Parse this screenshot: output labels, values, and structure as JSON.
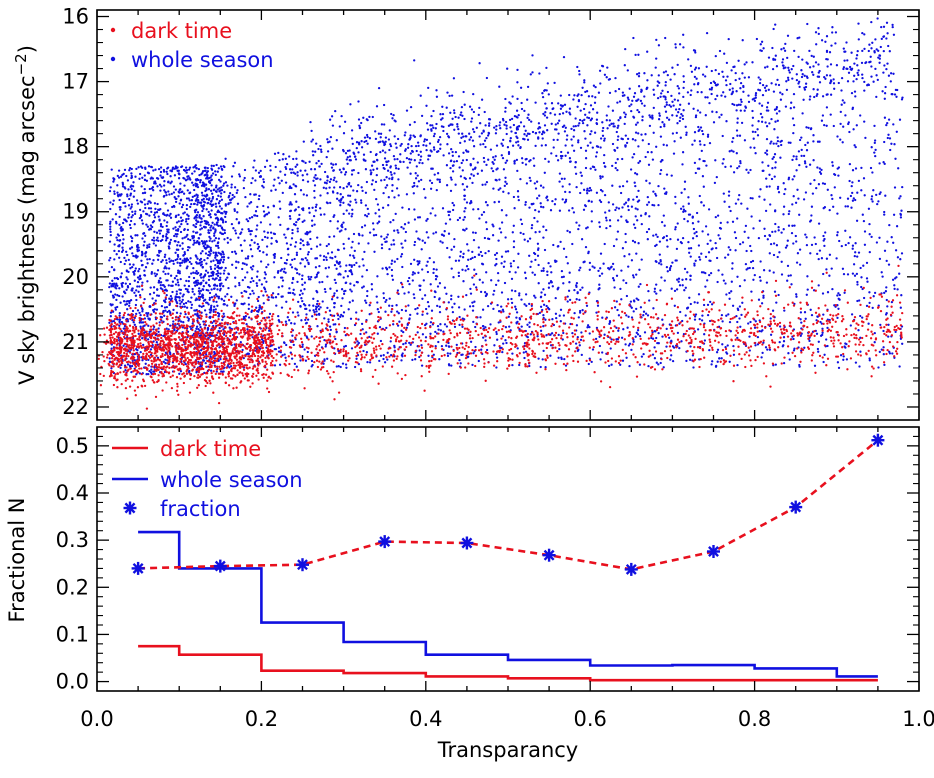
{
  "chart_data": [
    {
      "type": "scatter",
      "ylabel_main": "V sky brightness (mag arcsec",
      "ylabel_sup": "−2",
      "ylabel_close": ")",
      "ylim": [
        22.2,
        15.9
      ],
      "xlim": [
        0.0,
        1.0
      ],
      "y_ticks": [
        "16",
        "17",
        "18",
        "19",
        "20",
        "21",
        "22"
      ],
      "y_tick_values": [
        16,
        17,
        18,
        19,
        20,
        21,
        22
      ],
      "legend": [
        {
          "name": "dark time",
          "color": "#e8101e",
          "marker": "dot"
        },
        {
          "name": "whole season",
          "color": "#1010e0",
          "marker": "dot"
        }
      ],
      "legend_position": "top-left",
      "series": [
        {
          "name": "dark time",
          "color": "#e8101e",
          "approx_points": 2600,
          "transparency_range": [
            0.0,
            0.98
          ],
          "magnitude_range": [
            20.4,
            21.8
          ],
          "magnitude_median": 21.0
        },
        {
          "name": "whole season",
          "color": "#1010e0",
          "approx_points": 5200,
          "transparency_range": [
            0.0,
            1.0
          ],
          "magnitude_range": [
            16.1,
            21.6
          ],
          "note_ridge": "upper envelope rises from ~18 at 0.2 to ~16.5 at 0.95"
        }
      ]
    },
    {
      "type": "line",
      "ylabel": "Fractional N",
      "xlabel": "Transparancy",
      "xlim": [
        0.0,
        1.0
      ],
      "ylim": [
        -0.02,
        0.54
      ],
      "x_ticks": [
        "0.0",
        "0.2",
        "0.4",
        "0.6",
        "0.8",
        "1.0"
      ],
      "x_tick_values": [
        0.0,
        0.2,
        0.4,
        0.6,
        0.8,
        1.0
      ],
      "y_ticks": [
        "0.0",
        "0.1",
        "0.2",
        "0.3",
        "0.4",
        "0.5"
      ],
      "y_tick_values": [
        0.0,
        0.1,
        0.2,
        0.3,
        0.4,
        0.5
      ],
      "bin_edges": [
        0.05,
        0.1,
        0.2,
        0.3,
        0.4,
        0.5,
        0.6,
        0.7,
        0.8,
        0.9,
        0.95
      ],
      "series": [
        {
          "name": "dark time",
          "color": "#e8101e",
          "style": "step",
          "values": [
            0.075,
            0.057,
            0.023,
            0.018,
            0.011,
            0.007,
            0.003,
            0.003,
            0.003,
            0.003,
            0.003
          ]
        },
        {
          "name": "whole season",
          "color": "#1010e0",
          "style": "step",
          "values": [
            0.317,
            0.24,
            0.125,
            0.084,
            0.057,
            0.046,
            0.034,
            0.035,
            0.028,
            0.011,
            0.011
          ]
        },
        {
          "name": "fraction",
          "color": "#1010e0",
          "line_color": "#e8101e",
          "style": "dashed-with-asterisks",
          "x": [
            0.05,
            0.15,
            0.25,
            0.35,
            0.45,
            0.55,
            0.65,
            0.75,
            0.85,
            0.95
          ],
          "values": [
            0.24,
            0.245,
            0.248,
            0.297,
            0.294,
            0.268,
            0.238,
            0.276,
            0.37,
            0.512
          ]
        }
      ],
      "legend": [
        {
          "name": "dark time",
          "color": "#e8101e",
          "marker": "line"
        },
        {
          "name": "whole season",
          "color": "#1010e0",
          "marker": "line"
        },
        {
          "name": "fraction",
          "color": "#1010e0",
          "marker": "asterisk"
        }
      ],
      "legend_position": "top-left"
    }
  ]
}
